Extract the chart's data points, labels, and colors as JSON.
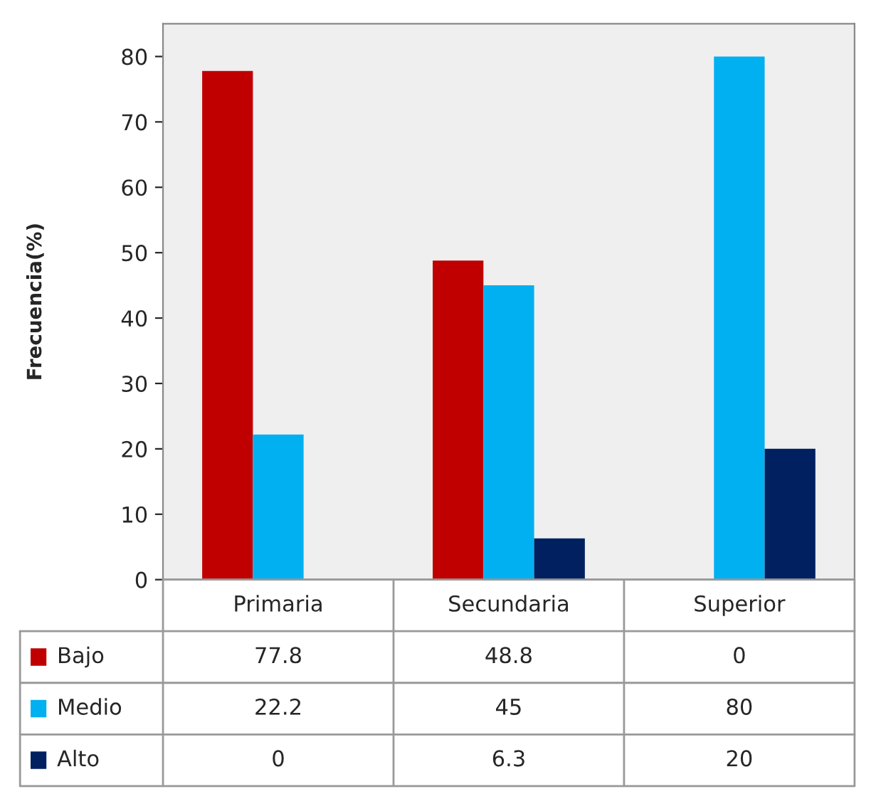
{
  "chart_data": {
    "type": "bar",
    "ylabel": "Frecuencia(%)",
    "categories": [
      "Primaria",
      "Secundaria",
      "Superior"
    ],
    "series": [
      {
        "name": "Bajo",
        "color": "#c00000",
        "values": [
          77.8,
          48.8,
          0
        ]
      },
      {
        "name": "Medio",
        "color": "#00b0f0",
        "values": [
          22.2,
          45,
          80
        ]
      },
      {
        "name": "Alto",
        "color": "#002060",
        "values": [
          0,
          6.3,
          20
        ]
      }
    ],
    "ylim": [
      0,
      85
    ],
    "yticks": [
      0,
      10,
      20,
      30,
      40,
      50,
      60,
      70,
      80
    ],
    "grid": false,
    "legend": "bottom",
    "data_labels": true
  }
}
